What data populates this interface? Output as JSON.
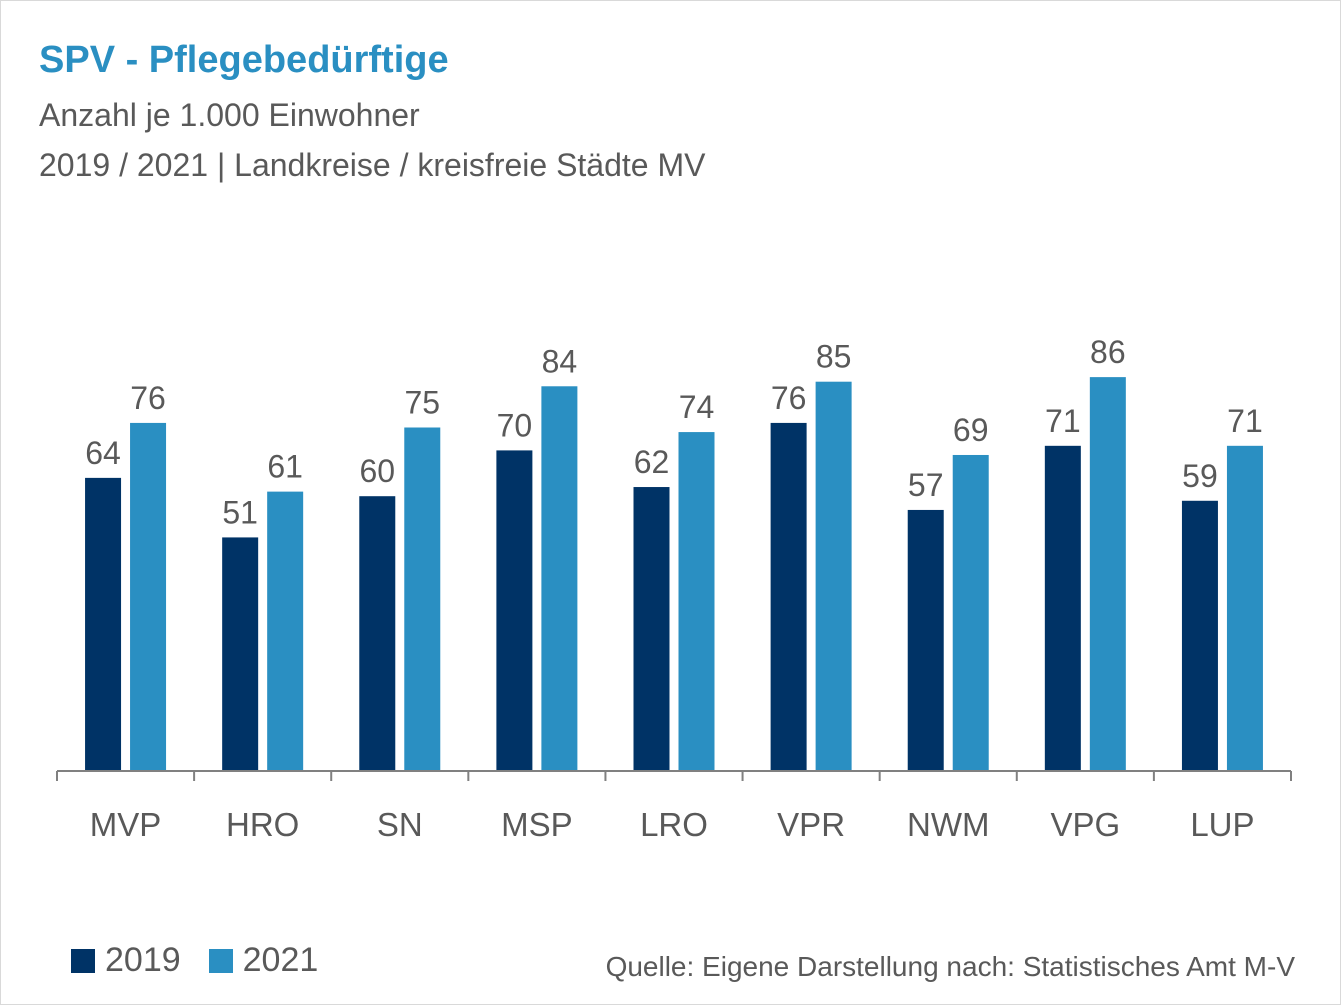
{
  "header": {
    "title": "SPV - Pflegebedürftige",
    "subtitle_1": "Anzahl je 1.000 Einwohner",
    "subtitle_2": "2019 / 2021 | Landkreise / kreisfreie Städte MV"
  },
  "footer": {
    "source": "Quelle: Eigene Darstellung nach: Statistisches Amt M-V"
  },
  "chart_data": {
    "type": "bar",
    "title": "SPV - Pflegebedürftige",
    "subtitle": "Anzahl je 1.000 Einwohner",
    "categories": [
      "MVP",
      "HRO",
      "SN",
      "MSP",
      "LRO",
      "VPR",
      "NWM",
      "VPG",
      "LUP"
    ],
    "series": [
      {
        "name": "2019",
        "color": "#003366",
        "values": [
          64,
          51,
          60,
          70,
          62,
          76,
          57,
          71,
          59
        ]
      },
      {
        "name": "2021",
        "color": "#2a8fc2",
        "values": [
          76,
          61,
          75,
          84,
          74,
          85,
          69,
          86,
          71
        ]
      }
    ],
    "ylim": [
      0,
      100
    ],
    "grid": false,
    "legend": "bottom-left",
    "data_labels": true
  }
}
